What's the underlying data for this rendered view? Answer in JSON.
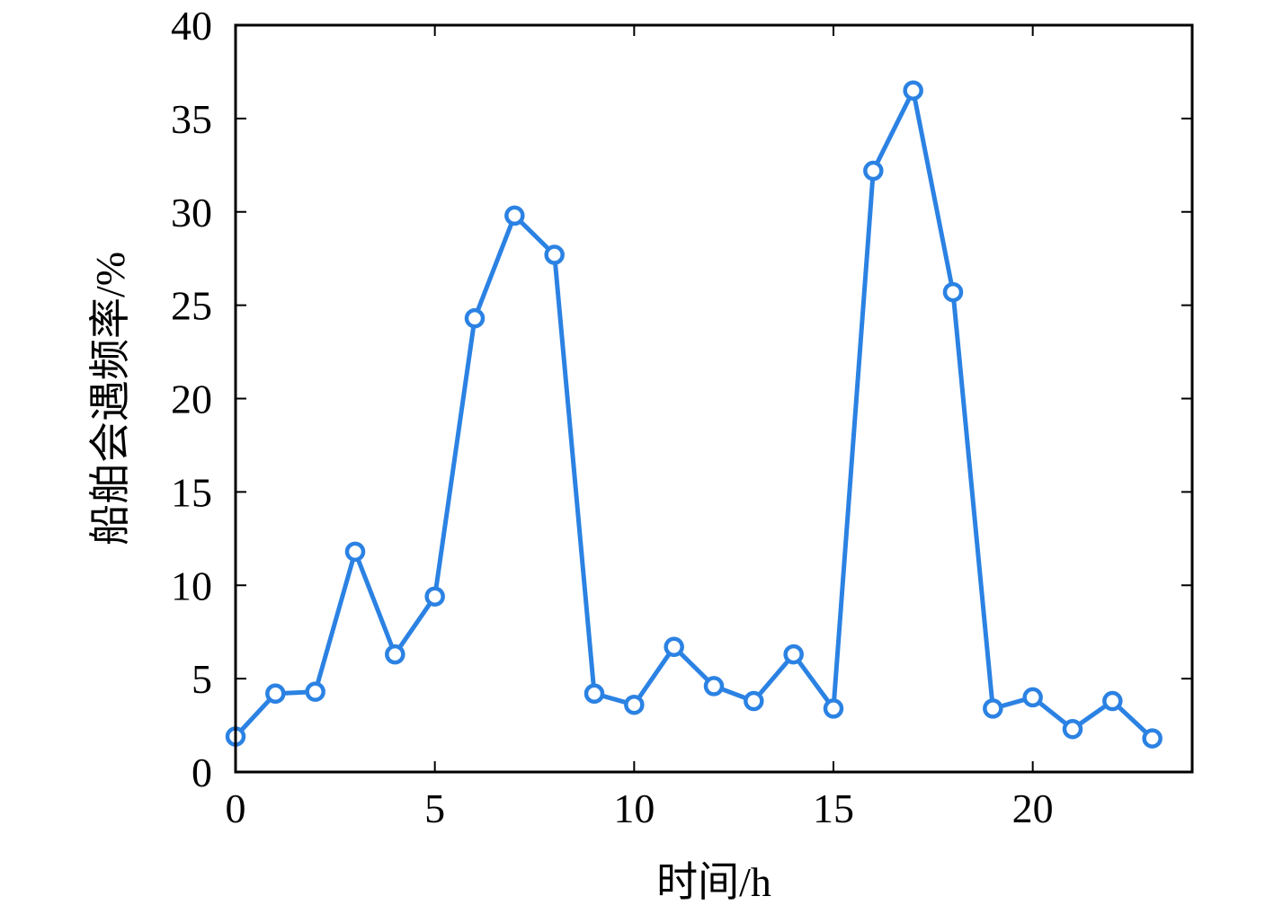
{
  "chart_data": {
    "type": "line",
    "title": "",
    "xlabel": "时间/h",
    "ylabel": "船舶会遇频率/%",
    "xlim": [
      0,
      24
    ],
    "ylim": [
      0,
      40
    ],
    "xticks": [
      0,
      5,
      10,
      15,
      20
    ],
    "yticks": [
      0,
      5,
      10,
      15,
      20,
      25,
      30,
      35,
      40
    ],
    "grid": false,
    "legend": "none",
    "series": [
      {
        "color": "#2b82e3",
        "marker": "circle",
        "x": [
          0,
          1,
          2,
          3,
          4,
          5,
          6,
          7,
          8,
          9,
          10,
          11,
          12,
          13,
          14,
          15,
          16,
          17,
          18,
          19,
          20,
          21,
          22,
          23
        ],
        "y": [
          1.9,
          4.2,
          4.3,
          11.8,
          6.3,
          9.4,
          24.3,
          29.8,
          27.7,
          4.2,
          3.6,
          6.7,
          4.6,
          3.8,
          6.3,
          3.4,
          32.2,
          36.5,
          25.7,
          3.4,
          4.0,
          2.3,
          3.8,
          1.8
        ]
      }
    ]
  }
}
